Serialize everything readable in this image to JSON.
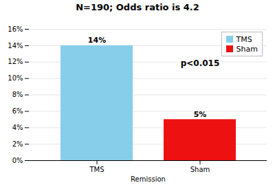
{
  "chart_data": {
    "type": "bar",
    "title": "N=190;  Odds ratio is 4.2",
    "categories": [
      "TMS",
      "Sham"
    ],
    "values": [
      14,
      5
    ],
    "value_labels": [
      "14%",
      "5%"
    ],
    "colors": [
      "#87CEEB",
      "#EE1111"
    ],
    "data_labels": true,
    "xlabel": "Remission",
    "ylim": [
      0,
      16
    ],
    "yticks": [
      {
        "value": 0,
        "label": "0%"
      },
      {
        "value": 2,
        "label": "2%"
      },
      {
        "value": 4,
        "label": "4%"
      },
      {
        "value": 6,
        "label": "6%"
      },
      {
        "value": 8,
        "label": "8%"
      },
      {
        "value": 10,
        "label": "10%"
      },
      {
        "value": 12,
        "label": "12%"
      },
      {
        "value": 14,
        "label": "14%"
      },
      {
        "value": 16,
        "label": "16%"
      }
    ],
    "grid": true,
    "legend": "upper right",
    "annotations": [
      {
        "text": "p<0.015",
        "y": 11.8
      }
    ]
  }
}
